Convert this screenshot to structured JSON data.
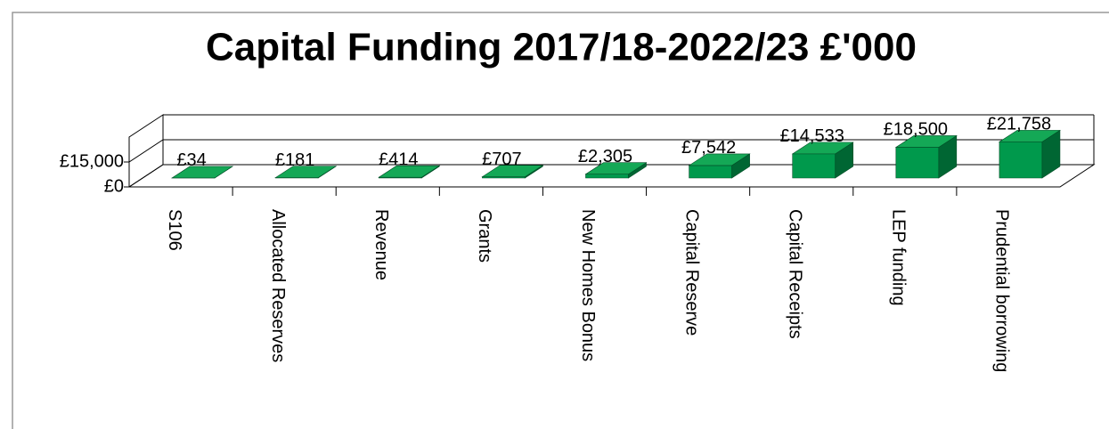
{
  "chart_data": {
    "type": "bar3d",
    "title": "Capital Funding 2017/18-2022/23 £'000",
    "categories": [
      "S106",
      "Allocated Reserves",
      "Revenue",
      "Grants",
      "New Homes Bonus",
      "Capital Reserve",
      "Capital Receipts",
      "LEP funding",
      "Prudential borrowing"
    ],
    "values": [
      34,
      181,
      414,
      707,
      2305,
      7542,
      14533,
      18500,
      21758
    ],
    "value_labels": [
      "£34",
      "£181",
      "£414",
      "£707",
      "£2,305",
      "£7,542",
      "£14,533",
      "£18,500",
      "£21,758"
    ],
    "color": "#00994c",
    "ylim": [
      0,
      30000
    ],
    "yticks": [
      {
        "value": 0,
        "label": "£0"
      },
      {
        "value": 15000,
        "label": "£15,000"
      }
    ]
  }
}
